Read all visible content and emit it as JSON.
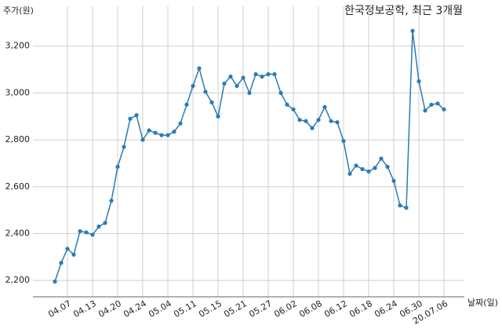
{
  "chart_data": {
    "type": "line",
    "title": "한국정보공학, 최근 3개월",
    "y_label": "주가(원)",
    "x_label": "날짜(일)",
    "categories": [
      null,
      null,
      "04.07",
      null,
      null,
      null,
      "04.13",
      null,
      null,
      null,
      "04.20",
      null,
      null,
      null,
      "04.24",
      null,
      null,
      null,
      "05.04",
      null,
      null,
      null,
      "05.11",
      null,
      null,
      null,
      "05.15",
      null,
      null,
      null,
      "05.21",
      null,
      null,
      null,
      "05.27",
      null,
      null,
      null,
      "06.02",
      null,
      null,
      null,
      "06.08",
      null,
      null,
      null,
      "06.12",
      null,
      null,
      null,
      "06.18",
      null,
      null,
      null,
      "06.24",
      null,
      null,
      null,
      "06.30",
      null,
      null,
      null,
      "20.07.06"
    ],
    "series": [
      {
        "name": "주가",
        "color": "#2b7bb5",
        "values": [
          2195,
          2275,
          2335,
          2310,
          2410,
          2405,
          2395,
          2430,
          2445,
          2540,
          2685,
          2770,
          2890,
          2905,
          2800,
          2840,
          2830,
          2820,
          2820,
          2835,
          2870,
          2950,
          3030,
          3105,
          3005,
          2960,
          2900,
          3040,
          3070,
          3030,
          3065,
          3000,
          3080,
          3070,
          3080,
          3080,
          3000,
          2950,
          2930,
          2885,
          2880,
          2850,
          2885,
          2940,
          2880,
          2875,
          2795,
          2655,
          2690,
          2675,
          2665,
          2680,
          2720,
          2685,
          2625,
          2520,
          2510,
          3265,
          3050,
          2925,
          2950,
          2955,
          2930
        ]
      }
    ],
    "ylim": [
      2130,
      3370
    ],
    "yticks": [
      {
        "value": 2200,
        "label": "2,200"
      },
      {
        "value": 2400,
        "label": "2,400"
      },
      {
        "value": 2600,
        "label": "2,600"
      },
      {
        "value": 2800,
        "label": "2,800"
      },
      {
        "value": 3000,
        "label": "3,000"
      },
      {
        "value": 3200,
        "label": "3,200"
      }
    ],
    "grid": true
  }
}
